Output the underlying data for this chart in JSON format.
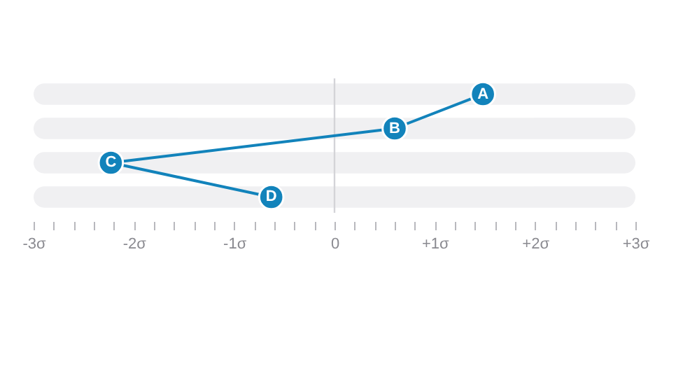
{
  "chart_data": {
    "type": "line",
    "orientation": "horizontal",
    "categories": [
      "A",
      "B",
      "C",
      "D"
    ],
    "series": [
      {
        "color": "#1283bb",
        "values": [
          1.48,
          0.6,
          -2.23,
          -0.63
        ]
      }
    ],
    "xlim": [
      -3,
      3
    ],
    "xticks": [
      {
        "value": -3,
        "label": "-3σ"
      },
      {
        "value": -2.8,
        "label": null
      },
      {
        "value": -2.6,
        "label": null
      },
      {
        "value": -2.4,
        "label": null
      },
      {
        "value": -2.2,
        "label": null
      },
      {
        "value": -2,
        "label": "-2σ"
      },
      {
        "value": -1.8,
        "label": null
      },
      {
        "value": -1.6,
        "label": null
      },
      {
        "value": -1.4,
        "label": null
      },
      {
        "value": -1.2,
        "label": null
      },
      {
        "value": -1,
        "label": "-1σ"
      },
      {
        "value": -0.8,
        "label": null
      },
      {
        "value": -0.6,
        "label": null
      },
      {
        "value": -0.4,
        "label": null
      },
      {
        "value": -0.2,
        "label": null
      },
      0,
      {
        "value": 0.2,
        "label": null
      },
      {
        "value": 0.4,
        "label": null
      },
      {
        "value": 0.6,
        "label": null
      },
      {
        "value": 0.8,
        "label": null
      },
      {
        "value": 1,
        "label": "+1σ"
      },
      {
        "value": 1.2,
        "label": null
      },
      {
        "value": 1.4,
        "label": null
      },
      {
        "value": 1.6,
        "label": null
      },
      {
        "value": 1.8,
        "label": null
      },
      {
        "value": 2,
        "label": "+2σ"
      },
      {
        "value": 2.2,
        "label": null
      },
      {
        "value": 2.4,
        "label": null
      },
      {
        "value": 2.6,
        "label": null
      },
      {
        "value": 2.8,
        "label": null
      },
      {
        "value": 3,
        "label": "+3σ"
      }
    ],
    "ref_lines": [
      {
        "axis": "x",
        "value": 0,
        "color": "#d4d4d8"
      }
    ],
    "bands": [
      {
        "axis": "y",
        "from": "A",
        "to": "A",
        "color": "#f0f0f2"
      },
      {
        "axis": "y",
        "from": "B",
        "to": "B",
        "color": "#f0f0f2"
      },
      {
        "axis": "y",
        "from": "C",
        "to": "C",
        "color": "#f0f0f2"
      },
      {
        "axis": "y",
        "from": "D",
        "to": "D",
        "color": "#f0f0f2"
      }
    ],
    "marker": "circle",
    "line_style": "solid",
    "tick_labels": "x"
  }
}
